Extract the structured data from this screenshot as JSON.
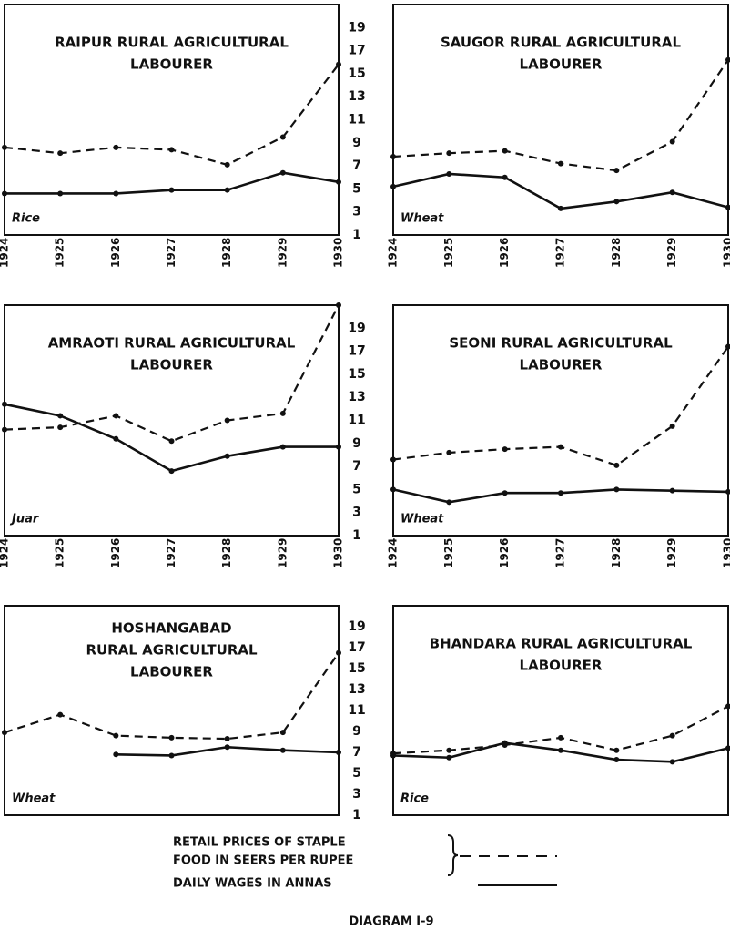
{
  "chart_data": [
    {
      "type": "line",
      "title": [
        "RAIPUR RURAL AGRICULTURAL",
        "LABOURER"
      ],
      "annotation": "Rice",
      "x": [
        1924,
        1925,
        1926,
        1927,
        1928,
        1929,
        1930
      ],
      "xlim": [
        1924,
        1930
      ],
      "xticks": [
        1924,
        1925,
        1926,
        1927,
        1928,
        1929,
        1930
      ],
      "ylim": [
        1,
        21
      ],
      "series": [
        {
          "color": "#111",
          "dashed": true,
          "values": [
            8.6,
            8.1,
            8.6,
            8.4,
            7.1,
            9.5,
            15.8
          ]
        },
        {
          "color": "#111",
          "dashed": false,
          "values": [
            4.6,
            4.6,
            4.6,
            4.9,
            4.9,
            6.4,
            5.6
          ]
        }
      ]
    },
    {
      "type": "line",
      "title": [
        "SAUGOR RURAL AGRICULTURAL",
        "LABOURER"
      ],
      "annotation": "Wheat",
      "x": [
        1924,
        1925,
        1926,
        1927,
        1928,
        1929,
        1930
      ],
      "xlim": [
        1924,
        1930
      ],
      "xticks": [
        1924,
        1925,
        1926,
        1927,
        1928,
        1929,
        1930
      ],
      "ylim": [
        1,
        21
      ],
      "yticks": [
        1,
        3,
        5,
        7,
        9,
        11,
        13,
        15,
        17,
        19
      ],
      "series": [
        {
          "color": "#111",
          "dashed": true,
          "values": [
            7.8,
            8.1,
            8.3,
            7.2,
            6.6,
            9.1,
            16.2
          ]
        },
        {
          "color": "#111",
          "dashed": false,
          "values": [
            5.2,
            6.3,
            6.0,
            3.3,
            3.9,
            4.7,
            3.4
          ]
        }
      ]
    },
    {
      "type": "line",
      "title": [
        "AMRAOTI RURAL AGRICULTURAL",
        "LABOURER"
      ],
      "annotation": "Juar",
      "x": [
        1924,
        1925,
        1926,
        1927,
        1928,
        1929,
        1930
      ],
      "xlim": [
        1924,
        1930
      ],
      "xticks": [
        1924,
        1925,
        1926,
        1927,
        1928,
        1929,
        1930
      ],
      "ylim": [
        1,
        21
      ],
      "series": [
        {
          "color": "#111",
          "dashed": true,
          "values": [
            10.2,
            10.4,
            11.4,
            9.2,
            11.0,
            11.6,
            21.0
          ]
        },
        {
          "color": "#111",
          "dashed": false,
          "values": [
            12.4,
            11.4,
            9.4,
            6.6,
            7.9,
            8.7,
            8.7
          ]
        }
      ]
    },
    {
      "type": "line",
      "title": [
        "SEONI RURAL AGRICULTURAL",
        "LABOURER"
      ],
      "annotation": "Wheat",
      "x": [
        1924,
        1925,
        1926,
        1927,
        1928,
        1929,
        1930
      ],
      "xlim": [
        1924,
        1930
      ],
      "xticks": [
        1924,
        1925,
        1926,
        1927,
        1928,
        1929,
        1930
      ],
      "ylim": [
        1,
        21
      ],
      "yticks": [
        1,
        3,
        5,
        7,
        9,
        11,
        13,
        15,
        17,
        19
      ],
      "series": [
        {
          "color": "#111",
          "dashed": true,
          "values": [
            7.6,
            8.2,
            8.5,
            8.7,
            7.1,
            10.5,
            17.4
          ]
        },
        {
          "color": "#111",
          "dashed": false,
          "values": [
            5.0,
            3.9,
            4.7,
            4.7,
            5.0,
            4.9,
            4.8
          ]
        }
      ]
    },
    {
      "type": "line",
      "title": [
        "HOSHANGABAD",
        "RURAL AGRICULTURAL",
        "LABOURER"
      ],
      "annotation": "Wheat",
      "x": [
        1924,
        1925,
        1926,
        1927,
        1928,
        1929,
        1930
      ],
      "xlim": [
        1924,
        1930
      ],
      "ylim": [
        1,
        21
      ],
      "series": [
        {
          "color": "#111",
          "dashed": true,
          "values": [
            8.9,
            10.6,
            8.6,
            8.4,
            8.3,
            8.9,
            16.5
          ]
        },
        {
          "color": "#111",
          "dashed": false,
          "values": [
            null,
            null,
            6.8,
            6.7,
            7.5,
            7.2,
            7.0
          ]
        }
      ]
    },
    {
      "type": "line",
      "title": [
        "BHANDARA RURAL AGRICULTURAL",
        "LABOURER"
      ],
      "annotation": "Rice",
      "x": [
        1924,
        1925,
        1926,
        1927,
        1928,
        1929,
        1930
      ],
      "xlim": [
        1924,
        1930
      ],
      "ylim": [
        1,
        21
      ],
      "yticks": [
        1,
        3,
        5,
        7,
        9,
        11,
        13,
        15,
        17,
        19
      ],
      "series": [
        {
          "color": "#111",
          "dashed": true,
          "values": [
            6.9,
            7.2,
            7.7,
            8.4,
            7.2,
            8.6,
            11.4
          ]
        },
        {
          "color": "#111",
          "dashed": false,
          "values": [
            6.7,
            6.5,
            7.9,
            7.2,
            6.3,
            6.1,
            7.4
          ]
        }
      ]
    }
  ],
  "legend": [
    {
      "label": [
        "RETAIL PRICES OF STAPLE",
        "FOOD IN SEERS PER RUPEE"
      ],
      "dashed": true
    },
    {
      "label": [
        "DAILY WAGES IN ANNAS"
      ],
      "dashed": false
    }
  ],
  "caption": "DIAGRAM I-9"
}
